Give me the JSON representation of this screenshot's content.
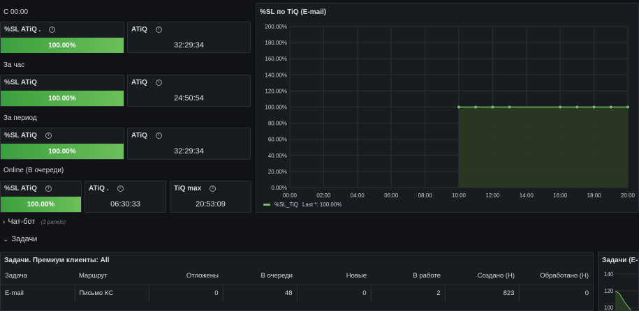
{
  "sections": {
    "since_midnight": "С 00:00",
    "per_hour": "За час",
    "per_period": "За период",
    "online": "Online (В очереди)"
  },
  "row1": {
    "sl_title": "%SL ATiQ .",
    "sl_value": "100.00%",
    "atiq_title": "ATiQ",
    "atiq_value": "32:29:34"
  },
  "row2": {
    "sl_title": "%SL ATiQ",
    "sl_value": "100.00%",
    "atiq_title": "ATiQ",
    "atiq_value": "24:50:54"
  },
  "row3": {
    "sl_title": "%SL ATiQ",
    "sl_value": "100.00%",
    "atiq_title": "ATiQ",
    "atiq_value": "32:29:34"
  },
  "row4": {
    "sl_title": "%SL ATiQ",
    "sl_value": "100.00%",
    "atiq_title": "ATiQ .",
    "atiq_value": "06:30:33",
    "tiq_title": "TiQ max",
    "tiq_value": "20:53:09"
  },
  "chart_panel": {
    "title": "%SL по TiQ (E-mail)",
    "legend_label": "%SL_TiQ",
    "legend_last": "Last *: 100.00%"
  },
  "chart_data": {
    "type": "area",
    "x": [
      "10:00",
      "11:00",
      "12:00",
      "13:00",
      "14:00",
      "15:00",
      "16:00",
      "17:00",
      "18:00",
      "19:00",
      "20:00"
    ],
    "series": [
      {
        "name": "%SL_TiQ",
        "values": [
          100,
          100,
          100,
          100,
          null,
          null,
          100,
          100,
          100,
          100,
          100
        ]
      }
    ],
    "x_ticks": [
      "00:00",
      "02:00",
      "04:00",
      "06:00",
      "08:00",
      "10:00",
      "12:00",
      "14:00",
      "16:00",
      "18:00",
      "20:00"
    ],
    "y_ticks": [
      "0.00%",
      "20.00%",
      "40.00%",
      "60.00%",
      "80.00%",
      "100.00%",
      "120.00%",
      "140.00%",
      "160.00%",
      "180.00%",
      "200.00%"
    ],
    "ylim": [
      0,
      200
    ],
    "xlim": [
      "00:00",
      "20:00"
    ],
    "grid": true,
    "legend_position": "bottom-left",
    "colors": {
      "line": "#73bf69",
      "fill": "#2b3a25"
    }
  },
  "rows": {
    "chatbot_label": "Чат-бот",
    "chatbot_sub": "(3 panels)",
    "tasks_label": "Задачи"
  },
  "tasks_table": {
    "title": "Задачи. Премиум клиенты: All",
    "headers": [
      "Задача",
      "Маршрут",
      "Отложены",
      "В очереди",
      "Новые",
      "В работе",
      "Создано (Н)",
      "Обработано (Н)"
    ],
    "rows": [
      [
        "E-mail",
        "Письмо КС",
        "0",
        "48",
        "0",
        "2",
        "823",
        "0"
      ]
    ]
  },
  "mini_chart": {
    "title": "Задачи (E-m",
    "y_ticks": [
      "140",
      "120",
      "100"
    ]
  },
  "colors": {
    "background": "#111217",
    "panel": "#181b1f",
    "gauge_green": "#56a64b",
    "line_green": "#73bf69"
  }
}
